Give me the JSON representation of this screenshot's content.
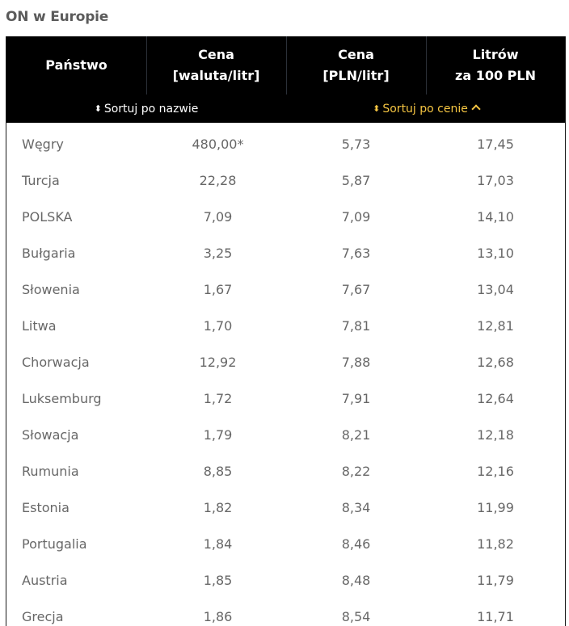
{
  "page": {
    "title": "ON w Europie"
  },
  "table": {
    "headers": [
      "Państwo",
      "Cena\n[waluta/litr]",
      "Cena\n[PLN/litr]",
      "Litrów\nza 100 PLN"
    ],
    "sort": {
      "by_name": {
        "icon": "⬍",
        "label": "Sortuj po nazwie",
        "active": false
      },
      "by_price": {
        "icon": "⬍",
        "label": "Sortuj po cenie",
        "active": true,
        "direction": "ascending"
      }
    },
    "colors": {
      "header_bg": "#000000",
      "header_text": "#ffffff",
      "active_sort": "#f5c542",
      "body_text": "#676767",
      "title_text": "#5b5b5b"
    },
    "rows": [
      [
        "Węgry",
        "480,00*",
        "5,73",
        "17,45"
      ],
      [
        "Turcja",
        "22,28",
        "5,87",
        "17,03"
      ],
      [
        "POLSKA",
        "7,09",
        "7,09",
        "14,10"
      ],
      [
        "Bułgaria",
        "3,25",
        "7,63",
        "13,10"
      ],
      [
        "Słowenia",
        "1,67",
        "7,67",
        "13,04"
      ],
      [
        "Litwa",
        "1,70",
        "7,81",
        "12,81"
      ],
      [
        "Chorwacja",
        "12,92",
        "7,88",
        "12,68"
      ],
      [
        "Luksemburg",
        "1,72",
        "7,91",
        "12,64"
      ],
      [
        "Słowacja",
        "1,79",
        "8,21",
        "12,18"
      ],
      [
        "Rumunia",
        "8,85",
        "8,22",
        "12,16"
      ],
      [
        "Estonia",
        "1,82",
        "8,34",
        "11,99"
      ],
      [
        "Portugalia",
        "1,84",
        "8,46",
        "11,82"
      ],
      [
        "Austria",
        "1,85",
        "8,48",
        "11,79"
      ],
      [
        "Grecja",
        "1,86",
        "8,54",
        "11,71"
      ]
    ]
  }
}
